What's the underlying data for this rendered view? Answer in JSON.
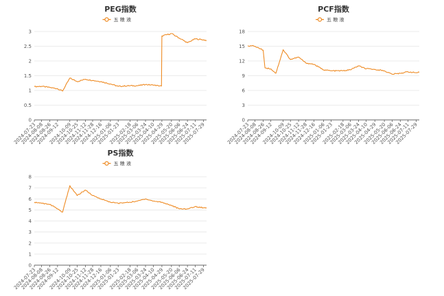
{
  "colors": {
    "series": "#ee8a22",
    "grid": "#e4e4e4",
    "axis": "#333333"
  },
  "x_dates": [
    "2024-07-23",
    "2024-08-08",
    "2024-08-26",
    "2024-09-12",
    "2024-10-09",
    "2024-10-25",
    "2024-11-12",
    "2024-11-28",
    "2024-12-16",
    "2025-01-06",
    "2025-01-23",
    "2025-02-18",
    "2025-03-06",
    "2025-03-24",
    "2025-04-10",
    "2025-04-29",
    "2025-05-20",
    "2025-06-06",
    "2025-06-24",
    "2025-07-11",
    "2025-07-29"
  ],
  "chart_data": [
    {
      "type": "line",
      "title": "PEG指数",
      "legend": "top-center",
      "grid": true,
      "ylim": [
        0,
        3
      ],
      "yticks": [
        0,
        0.5,
        1,
        1.5,
        2,
        2.5,
        3
      ],
      "series": [
        {
          "name": "五 粮 液",
          "x": [
            "2024-07-23",
            "2024-08-08",
            "2024-08-26",
            "2024-09-12",
            "2024-09-23",
            "2024-10-09",
            "2024-10-25",
            "2024-11-12",
            "2024-11-28",
            "2024-12-16",
            "2025-01-06",
            "2025-01-23",
            "2025-02-18",
            "2025-03-06",
            "2025-03-24",
            "2025-04-10",
            "2025-04-28",
            "2025-04-29",
            "2025-05-20",
            "2025-06-06",
            "2025-06-24",
            "2025-07-11",
            "2025-07-29",
            "2025-08-05"
          ],
          "values": [
            1.13,
            1.14,
            1.1,
            1.06,
            0.98,
            1.42,
            1.3,
            1.38,
            1.34,
            1.3,
            1.22,
            1.14,
            1.16,
            1.16,
            1.2,
            1.18,
            1.15,
            2.85,
            2.93,
            2.78,
            2.62,
            2.75,
            2.72,
            2.7
          ]
        }
      ]
    },
    {
      "type": "line",
      "title": "PCF指数",
      "legend": "top-center",
      "grid": true,
      "ylim": [
        0,
        18
      ],
      "yticks": [
        0,
        3,
        6,
        9,
        12,
        15,
        18
      ],
      "series": [
        {
          "name": "五 粮 液",
          "x": [
            "2024-07-23",
            "2024-08-08",
            "2024-08-26",
            "2024-08-30",
            "2024-09-12",
            "2024-09-23",
            "2024-10-09",
            "2024-10-25",
            "2024-11-12",
            "2024-11-28",
            "2024-12-16",
            "2025-01-06",
            "2025-01-23",
            "2025-02-18",
            "2025-03-06",
            "2025-03-24",
            "2025-04-10",
            "2025-04-29",
            "2025-05-20",
            "2025-06-06",
            "2025-06-24",
            "2025-07-11",
            "2025-07-29",
            "2025-08-05"
          ],
          "values": [
            15.1,
            15.0,
            14.2,
            10.6,
            10.4,
            9.5,
            14.3,
            12.3,
            12.8,
            11.6,
            11.3,
            10.2,
            10.0,
            10.0,
            10.2,
            11.0,
            10.4,
            10.3,
            10.0,
            9.3,
            9.5,
            9.8,
            9.6,
            9.7
          ]
        }
      ]
    },
    {
      "type": "line",
      "title": "PS指数",
      "legend": "top-center",
      "grid": true,
      "ylim": [
        0,
        8
      ],
      "yticks": [
        0,
        1,
        2,
        3,
        4,
        5,
        6,
        7,
        8
      ],
      "series": [
        {
          "name": "五 粮 液",
          "x": [
            "2024-07-23",
            "2024-08-08",
            "2024-08-26",
            "2024-09-12",
            "2024-09-23",
            "2024-10-09",
            "2024-10-25",
            "2024-11-12",
            "2024-11-28",
            "2024-12-16",
            "2025-01-06",
            "2025-01-23",
            "2025-02-18",
            "2025-03-06",
            "2025-03-24",
            "2025-04-10",
            "2025-04-29",
            "2025-05-20",
            "2025-06-06",
            "2025-06-24",
            "2025-07-11",
            "2025-07-29",
            "2025-08-05"
          ],
          "values": [
            5.7,
            5.6,
            5.5,
            5.1,
            4.8,
            7.2,
            6.3,
            6.8,
            6.3,
            6.0,
            5.7,
            5.6,
            5.7,
            5.8,
            6.0,
            5.8,
            5.7,
            5.4,
            5.1,
            5.1,
            5.3,
            5.2,
            5.2
          ]
        }
      ]
    }
  ]
}
